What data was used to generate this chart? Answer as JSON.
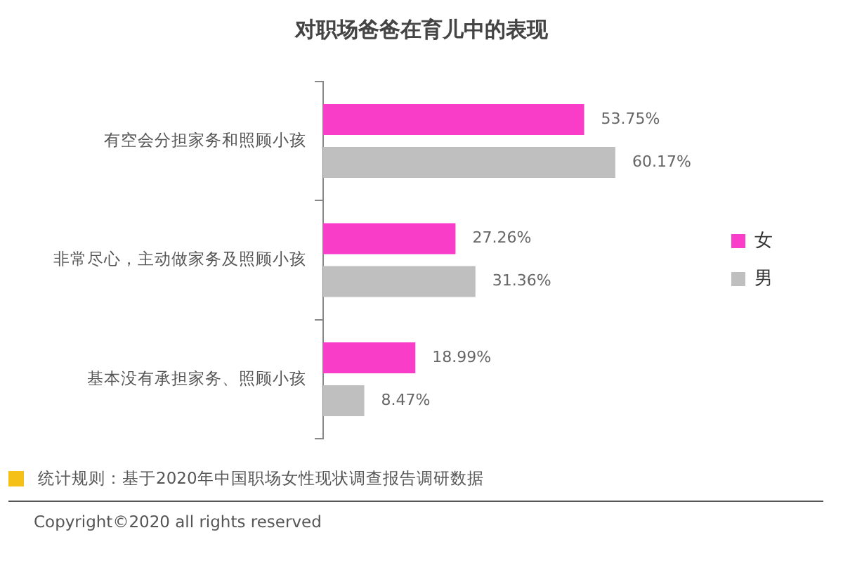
{
  "chart_data": {
    "type": "bar",
    "orientation": "horizontal",
    "tick_labels": "y",
    "title": "对职场爸爸在育儿中的表现",
    "categories": [
      "有空会分担家务和照顾小孩",
      "非常尽心，主动做家务及照顾小孩",
      "基本没有承担家务、照顾小孩"
    ],
    "series": [
      {
        "name": "女",
        "color": "#fa3dc8",
        "values": [
          53.75,
          27.26,
          18.99
        ],
        "value_labels": [
          "53.75%",
          "27.26%",
          "18.99%"
        ]
      },
      {
        "name": "男",
        "color": "#bfbfbf",
        "values": [
          60.17,
          31.36,
          8.47
        ],
        "value_labels": [
          "60.17%",
          "31.36%",
          "8.47%"
        ]
      }
    ],
    "legend": "right",
    "annotations": [
      "统计规则：基于2020年中国职场女性现状调查报告调研数据",
      "Copyright©2020 all rights reserved"
    ]
  }
}
